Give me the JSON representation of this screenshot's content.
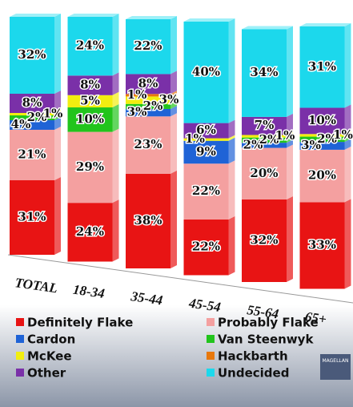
{
  "chart_data": {
    "type": "stacked_bar",
    "categories": [
      "TOTAL",
      "18-34",
      "35-44",
      "45-54",
      "55-64",
      "65+"
    ],
    "series": [
      {
        "name": "Definitely Flake",
        "color": "#e81414",
        "values": [
          31,
          24,
          38,
          22,
          32,
          33
        ],
        "value_labels": [
          "31%",
          "24%",
          "38%",
          "22%",
          "32%",
          "33%"
        ]
      },
      {
        "name": "Probably Flake",
        "color": "#f4a0a0",
        "values": [
          21,
          29,
          23,
          22,
          20,
          20
        ],
        "value_labels": [
          "21%",
          "29%",
          "23%",
          "22%",
          "20%",
          "20%"
        ]
      },
      {
        "name": "Cardon",
        "color": "#1f63d6",
        "values": [
          4,
          null,
          3,
          9,
          2,
          3
        ],
        "value_labels": [
          "4%",
          null,
          "3%",
          "9%",
          "2%",
          "3%"
        ]
      },
      {
        "name": "Van Steenwyk",
        "color": "#22c41c",
        "values": [
          2,
          10,
          2,
          null,
          2,
          2
        ],
        "value_labels": [
          "2%",
          "10%",
          "2%",
          null,
          "2%",
          "2%"
        ]
      },
      {
        "name": "McKee",
        "color": "#f2ee10",
        "values": [
          1,
          5,
          3,
          1,
          1,
          1
        ],
        "value_labels": [
          "1%",
          "5%",
          "3%",
          "1%",
          "1%",
          "1%"
        ]
      },
      {
        "name": "Hackbarth",
        "color": "#e8780c",
        "values": [
          null,
          null,
          1,
          null,
          null,
          null
        ],
        "value_labels": [
          null,
          null,
          "1%",
          null,
          null,
          null
        ]
      },
      {
        "name": "Other",
        "color": "#7a30a8",
        "values": [
          8,
          8,
          8,
          6,
          7,
          10
        ],
        "value_labels": [
          "8%",
          "8%",
          "8%",
          "6%",
          "7%",
          "10%"
        ]
      },
      {
        "name": "Undecided",
        "color": "#1cd8ec",
        "values": [
          32,
          24,
          22,
          40,
          34,
          31
        ],
        "value_labels": [
          "32%",
          "24%",
          "22%",
          "40%",
          "34%",
          "31%"
        ]
      }
    ]
  },
  "logo": "MAGELLAN"
}
